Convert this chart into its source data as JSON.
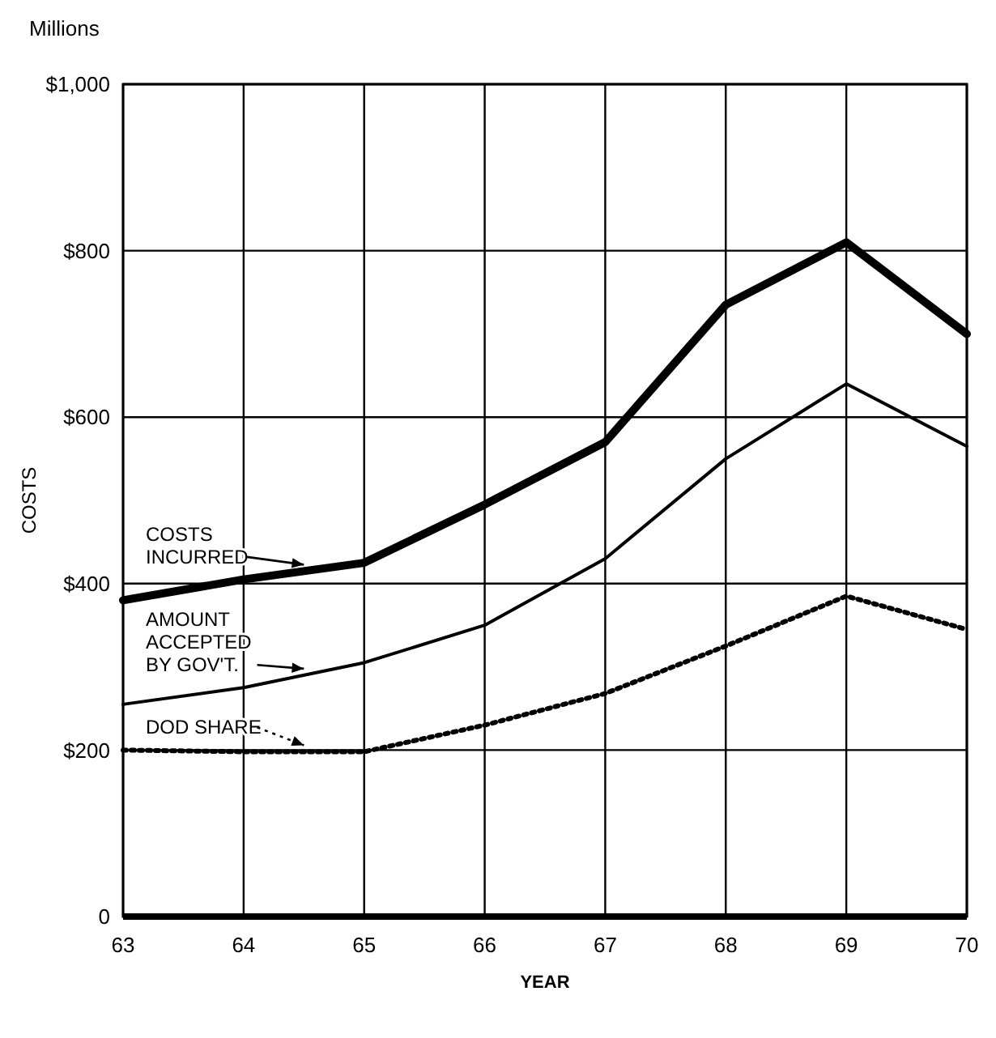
{
  "chart_data": {
    "type": "line",
    "xlabel": "YEAR",
    "ylabel": "COSTS",
    "annotations": [
      "Millions"
    ],
    "x": [
      63,
      64,
      65,
      66,
      67,
      68,
      69,
      70
    ],
    "series": [
      {
        "name": "COSTS\nINCURRED",
        "color": "#000000",
        "line_style": "solid",
        "values": [
          380,
          405,
          425,
          495,
          570,
          735,
          810,
          700
        ]
      },
      {
        "name": "AMOUNT\nACCEPTED\nBY GOV'T.",
        "color": "#000000",
        "line_style": "solid",
        "values": [
          255,
          275,
          305,
          350,
          430,
          550,
          640,
          565
        ]
      },
      {
        "name": "DOD SHARE",
        "color": "#000000",
        "line_style": "dotted",
        "values": [
          200,
          198,
          198,
          230,
          268,
          325,
          385,
          345
        ]
      }
    ],
    "xlim": [
      63,
      70
    ],
    "xticks": [
      63,
      64,
      65,
      66,
      67,
      68,
      69,
      70
    ],
    "ylim": [
      0,
      1000
    ],
    "yticks": [
      {
        "value": 0,
        "label": "0"
      },
      {
        "value": 200,
        "label": "$200"
      },
      {
        "value": 400,
        "label": "$400"
      },
      {
        "value": 600,
        "label": "$600"
      },
      {
        "value": 800,
        "label": "$800"
      },
      {
        "value": 1000,
        "label": "$1,000"
      }
    ],
    "grid": true,
    "marker": "none"
  }
}
